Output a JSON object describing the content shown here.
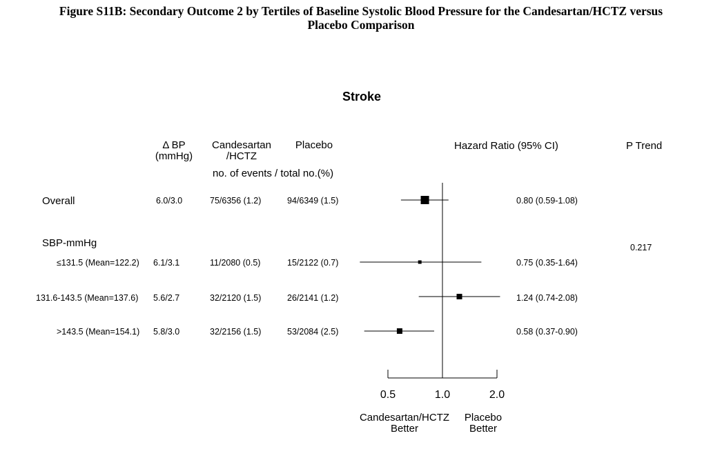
{
  "figure_title_line1": "Figure S11B: Secondary Outcome 2 by Tertiles of Baseline Systolic Blood Pressure for the Candesartan/HCTZ versus",
  "figure_title_line2": "Placebo Comparison",
  "chart_data": {
    "type": "forest",
    "title": "Stroke",
    "columns": {
      "bp": "Δ BP\n(mmHg)",
      "treatment": "Candesartan\n/HCTZ",
      "placebo": "Placebo",
      "subheader": "no. of events / total no.(%)",
      "hr": "Hazard Ratio (95% CI)",
      "ptrend": "P Trend"
    },
    "group_label": "SBP-mmHg",
    "p_trend": "0.217",
    "rows": [
      {
        "label": "Overall",
        "bp": "6.0/3.0",
        "treatment": "75/6356 (1.2)",
        "placebo": "94/6349 (1.5)",
        "hr_text": "0.80 (0.59-1.08)",
        "hr": 0.8,
        "lo": 0.59,
        "hi": 1.08,
        "marker": "large"
      },
      {
        "label": "≤131.5 (Mean=122.2)",
        "bp": "6.1/3.1",
        "treatment": "11/2080 (0.5)",
        "placebo": "15/2122 (0.7)",
        "hr_text": "0.75 (0.35-1.64)",
        "hr": 0.75,
        "lo": 0.35,
        "hi": 1.64,
        "marker": "tiny"
      },
      {
        "label": "131.6-143.5 (Mean=137.6)",
        "bp": "5.6/2.7",
        "treatment": "32/2120 (1.5)",
        "placebo": "26/2141 (1.2)",
        "hr_text": "1.24 (0.74-2.08)",
        "hr": 1.24,
        "lo": 0.74,
        "hi": 2.08,
        "marker": "small"
      },
      {
        "label": ">143.5 (Mean=154.1)",
        "bp": "5.8/3.0",
        "treatment": "32/2156 (1.5)",
        "placebo": "53/2084 (2.5)",
        "hr_text": "0.58 (0.37-0.90)",
        "hr": 0.58,
        "lo": 0.37,
        "hi": 0.9,
        "marker": "small"
      }
    ],
    "x_axis": {
      "scale": "log",
      "ticks": [
        0.5,
        1.0,
        2.0
      ],
      "tick_labels": [
        "0.5",
        "1.0",
        "2.0"
      ],
      "reference": 1.0
    },
    "favors_left": "Candesartan/HCTZ\nBetter",
    "favors_right": "Placebo\nBetter"
  }
}
